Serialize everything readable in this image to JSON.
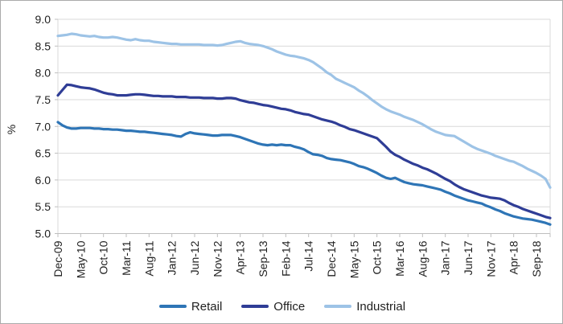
{
  "chart_data": {
    "type": "line",
    "ylabel": "%",
    "ylim": [
      5.0,
      9.0
    ],
    "y_tick_labels": [
      "9.0",
      "8.5",
      "8.0",
      "7.5",
      "7.0",
      "6.5",
      "6.0",
      "5.5",
      "5.0"
    ],
    "y_tick_values": [
      9.0,
      8.5,
      8.0,
      7.5,
      7.0,
      6.5,
      6.0,
      5.5,
      5.0
    ],
    "x_tick_labels": [
      "Dec-09",
      "May-10",
      "Oct-10",
      "Mar-11",
      "Aug-11",
      "Jan-12",
      "Jun-12",
      "Nov-12",
      "Apr-13",
      "Sep-13",
      "Feb-14",
      "Jul-14",
      "Dec-14",
      "May-15",
      "Oct-15",
      "Mar-16",
      "Aug-16",
      "Jan-17",
      "Jun-17",
      "Nov-17",
      "Apr-18",
      "Sep-18"
    ],
    "x_tick_indices": [
      0,
      5,
      10,
      15,
      20,
      25,
      30,
      35,
      40,
      45,
      50,
      55,
      60,
      65,
      70,
      75,
      80,
      85,
      90,
      95,
      100,
      105
    ],
    "n_points": 109,
    "grid": "horizontal",
    "legend_position": "bottom",
    "series": [
      {
        "name": "Retail",
        "color": "#2E75B6",
        "values": [
          7.08,
          7.02,
          6.98,
          6.96,
          6.96,
          6.97,
          6.97,
          6.97,
          6.96,
          6.96,
          6.95,
          6.95,
          6.94,
          6.94,
          6.93,
          6.92,
          6.92,
          6.91,
          6.9,
          6.9,
          6.89,
          6.88,
          6.87,
          6.86,
          6.85,
          6.84,
          6.82,
          6.81,
          6.86,
          6.89,
          6.87,
          6.86,
          6.85,
          6.84,
          6.83,
          6.83,
          6.84,
          6.84,
          6.84,
          6.82,
          6.8,
          6.77,
          6.74,
          6.71,
          6.68,
          6.66,
          6.65,
          6.66,
          6.65,
          6.66,
          6.65,
          6.65,
          6.62,
          6.6,
          6.57,
          6.52,
          6.48,
          6.47,
          6.45,
          6.41,
          6.39,
          6.38,
          6.37,
          6.35,
          6.33,
          6.3,
          6.26,
          6.24,
          6.21,
          6.17,
          6.13,
          6.08,
          6.04,
          6.02,
          6.04,
          6.0,
          5.96,
          5.94,
          5.92,
          5.91,
          5.9,
          5.88,
          5.86,
          5.84,
          5.82,
          5.78,
          5.75,
          5.71,
          5.68,
          5.65,
          5.62,
          5.6,
          5.58,
          5.56,
          5.52,
          5.49,
          5.45,
          5.42,
          5.38,
          5.35,
          5.32,
          5.3,
          5.28,
          5.27,
          5.26,
          5.24,
          5.22,
          5.2,
          5.17
        ]
      },
      {
        "name": "Office",
        "color": "#2F3D96",
        "values": [
          7.58,
          7.68,
          7.78,
          7.77,
          7.75,
          7.73,
          7.72,
          7.71,
          7.69,
          7.66,
          7.63,
          7.61,
          7.6,
          7.58,
          7.58,
          7.58,
          7.59,
          7.6,
          7.6,
          7.59,
          7.58,
          7.57,
          7.57,
          7.56,
          7.56,
          7.56,
          7.55,
          7.55,
          7.55,
          7.54,
          7.54,
          7.54,
          7.53,
          7.53,
          7.53,
          7.52,
          7.52,
          7.53,
          7.53,
          7.52,
          7.49,
          7.47,
          7.45,
          7.44,
          7.42,
          7.4,
          7.39,
          7.37,
          7.35,
          7.33,
          7.32,
          7.3,
          7.27,
          7.25,
          7.23,
          7.22,
          7.19,
          7.16,
          7.13,
          7.11,
          7.09,
          7.06,
          7.02,
          6.99,
          6.95,
          6.93,
          6.9,
          6.87,
          6.84,
          6.81,
          6.78,
          6.7,
          6.62,
          6.53,
          6.47,
          6.43,
          6.38,
          6.34,
          6.3,
          6.27,
          6.23,
          6.2,
          6.16,
          6.12,
          6.07,
          6.02,
          5.98,
          5.92,
          5.87,
          5.83,
          5.8,
          5.77,
          5.74,
          5.71,
          5.69,
          5.67,
          5.66,
          5.65,
          5.62,
          5.57,
          5.53,
          5.5,
          5.46,
          5.43,
          5.4,
          5.37,
          5.34,
          5.31,
          5.29
        ]
      },
      {
        "name": "Industrial",
        "color": "#9DC3E6",
        "values": [
          8.69,
          8.7,
          8.71,
          8.73,
          8.72,
          8.7,
          8.69,
          8.68,
          8.69,
          8.67,
          8.66,
          8.66,
          8.67,
          8.66,
          8.64,
          8.62,
          8.61,
          8.63,
          8.61,
          8.6,
          8.6,
          8.58,
          8.57,
          8.56,
          8.55,
          8.54,
          8.54,
          8.53,
          8.53,
          8.53,
          8.53,
          8.53,
          8.52,
          8.52,
          8.52,
          8.51,
          8.52,
          8.54,
          8.56,
          8.58,
          8.59,
          8.56,
          8.54,
          8.53,
          8.52,
          8.5,
          8.47,
          8.44,
          8.4,
          8.37,
          8.34,
          8.32,
          8.31,
          8.29,
          8.27,
          8.24,
          8.2,
          8.14,
          8.08,
          8.01,
          7.96,
          7.89,
          7.85,
          7.81,
          7.77,
          7.73,
          7.67,
          7.62,
          7.56,
          7.49,
          7.43,
          7.37,
          7.32,
          7.28,
          7.25,
          7.22,
          7.18,
          7.15,
          7.12,
          7.08,
          7.04,
          6.99,
          6.94,
          6.9,
          6.87,
          6.84,
          6.83,
          6.82,
          6.77,
          6.72,
          6.67,
          6.62,
          6.58,
          6.55,
          6.52,
          6.49,
          6.45,
          6.42,
          6.39,
          6.36,
          6.34,
          6.3,
          6.26,
          6.21,
          6.17,
          6.13,
          6.08,
          6.02,
          5.86
        ]
      }
    ]
  }
}
